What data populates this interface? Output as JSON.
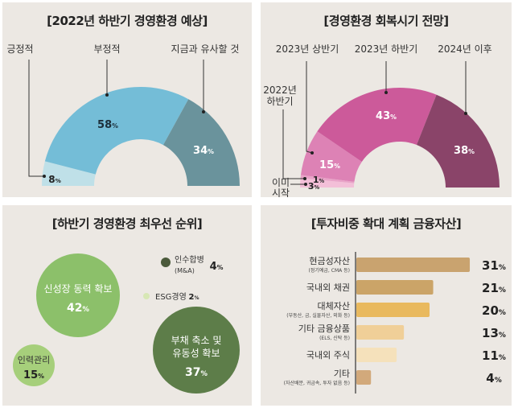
{
  "chart_data": [
    {
      "type": "pie",
      "variant": "semi-donut",
      "title": "[2022년 하반기 경영환경 예상]",
      "categories": [
        "긍정적",
        "부정적",
        "지금과 유사할 것"
      ],
      "values": [
        8,
        58,
        34
      ],
      "value_labels": [
        "8%",
        "58%",
        "34%"
      ],
      "colors": [
        "#bfe0e8",
        "#74bdd7",
        "#6a939c"
      ]
    },
    {
      "type": "pie",
      "variant": "semi-donut",
      "title": "[경영환경 회복시기 전망]",
      "categories": [
        "이미 시작",
        "2022년 하반기",
        "2023년 상반기",
        "2023년 하반기",
        "2024년 이후"
      ],
      "values": [
        3,
        1,
        15,
        43,
        38
      ],
      "value_labels": [
        "3%",
        "1%",
        "15%",
        "43%",
        "38%"
      ],
      "colors": [
        "#f3bfd8",
        "#e9a3c8",
        "#dd82b5",
        "#cc5a9a",
        "#8a4469"
      ]
    },
    {
      "type": "scatter",
      "variant": "bubble",
      "title": "[하반기 경영환경 최우선 순위]",
      "categories": [
        "신성장 동력 확보",
        "인력관리",
        "부채 축소 및 유동성 확보",
        "인수합병",
        "ESG경영"
      ],
      "sub_labels": [
        "",
        "",
        "",
        "(M&A)",
        ""
      ],
      "values": [
        42,
        15,
        37,
        4,
        2
      ],
      "value_labels": [
        "42%",
        "15%",
        "37%",
        "4%",
        "2%"
      ],
      "colors": [
        "#8cc06a",
        "#a6cf7b",
        "#5d7d49",
        "#4b5a3b",
        "#d7e7b5"
      ]
    },
    {
      "type": "bar",
      "orientation": "horizontal",
      "title": "[투자비중 확대 계획 금융자산]",
      "categories": [
        "현금성자산",
        "국내외 채권",
        "대체자산",
        "기타 금융상품",
        "국내외 주식",
        "기타"
      ],
      "sub_labels": [
        "(정기예금, CMA 등)",
        "",
        "(부동산, 금, 실물자산, 외화 등)",
        "(ELS, 신탁 등)",
        "",
        "(자산배분, 귀금속, 투자 없음 등)"
      ],
      "values": [
        31,
        21,
        20,
        13,
        11,
        4
      ],
      "value_labels": [
        "31%",
        "21%",
        "20%",
        "13%",
        "11%",
        "4%"
      ],
      "colors": [
        "#c9a36f",
        "#cba468",
        "#e9b95e",
        "#f0cf98",
        "#f5e1bb",
        "#d2a97b"
      ]
    }
  ]
}
